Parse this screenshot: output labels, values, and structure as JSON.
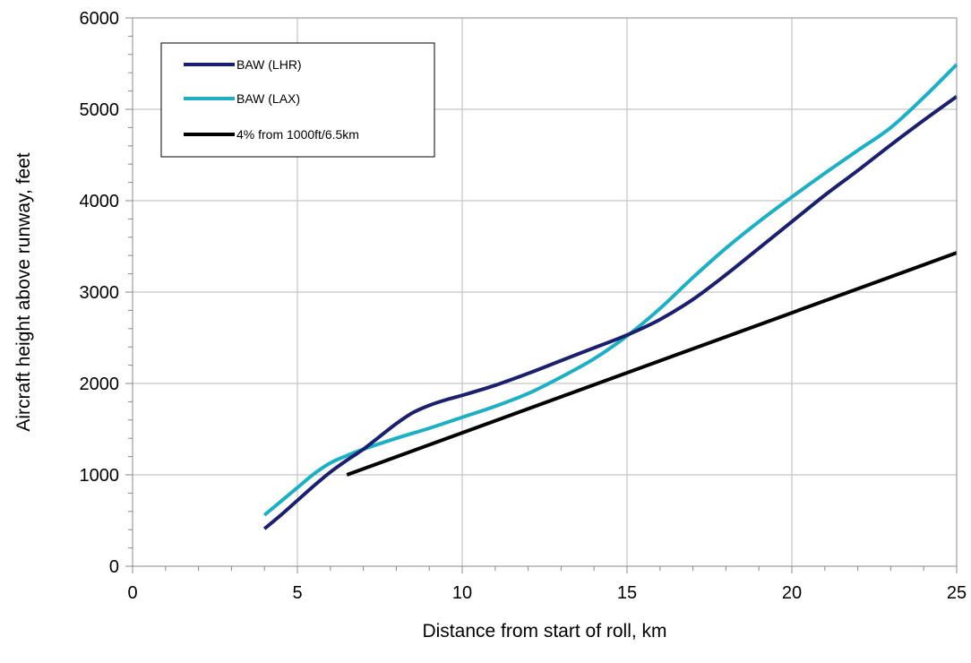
{
  "chart_data": {
    "type": "line",
    "title": "",
    "xlabel": "Distance from start of roll, km",
    "ylabel": "Aircraft height above runway, feet",
    "xlim": [
      0,
      25
    ],
    "ylim": [
      0,
      6000
    ],
    "x_ticks": [
      0,
      5,
      10,
      15,
      20,
      25
    ],
    "y_ticks": [
      0,
      1000,
      2000,
      3000,
      4000,
      5000,
      6000
    ],
    "x_tick_labels": [
      "0",
      "5",
      "10",
      "15",
      "20",
      "25"
    ],
    "y_tick_labels": [
      "0",
      "1000",
      "2000",
      "3000",
      "4000",
      "5000",
      "6000"
    ],
    "grid": true,
    "legend_position": "top-left",
    "series": [
      {
        "name": "BAW (LHR)",
        "color": "#1a1f6e",
        "points": [
          [
            4.0,
            410
          ],
          [
            4.5,
            560
          ],
          [
            5.0,
            720
          ],
          [
            5.5,
            880
          ],
          [
            6.0,
            1030
          ],
          [
            6.5,
            1160
          ],
          [
            7.0,
            1280
          ],
          [
            7.5,
            1420
          ],
          [
            8.0,
            1560
          ],
          [
            8.5,
            1680
          ],
          [
            9.0,
            1760
          ],
          [
            9.5,
            1820
          ],
          [
            10.0,
            1870
          ],
          [
            11.0,
            1980
          ],
          [
            12.0,
            2110
          ],
          [
            13.0,
            2250
          ],
          [
            14.0,
            2390
          ],
          [
            15.0,
            2530
          ],
          [
            16.0,
            2700
          ],
          [
            17.0,
            2920
          ],
          [
            18.0,
            3190
          ],
          [
            19.0,
            3480
          ],
          [
            20.0,
            3770
          ],
          [
            21.0,
            4060
          ],
          [
            22.0,
            4330
          ],
          [
            23.0,
            4610
          ],
          [
            24.0,
            4880
          ],
          [
            25.0,
            5140
          ]
        ]
      },
      {
        "name": "BAW (LAX)",
        "color": "#1eafc5",
        "points": [
          [
            4.0,
            560
          ],
          [
            4.5,
            710
          ],
          [
            5.0,
            860
          ],
          [
            5.5,
            1010
          ],
          [
            6.0,
            1130
          ],
          [
            6.5,
            1210
          ],
          [
            7.0,
            1280
          ],
          [
            8.0,
            1400
          ],
          [
            9.0,
            1510
          ],
          [
            10.0,
            1630
          ],
          [
            11.0,
            1750
          ],
          [
            12.0,
            1890
          ],
          [
            13.0,
            2070
          ],
          [
            14.0,
            2270
          ],
          [
            15.0,
            2520
          ],
          [
            16.0,
            2820
          ],
          [
            17.0,
            3160
          ],
          [
            18.0,
            3480
          ],
          [
            19.0,
            3770
          ],
          [
            20.0,
            4040
          ],
          [
            21.0,
            4300
          ],
          [
            22.0,
            4550
          ],
          [
            23.0,
            4800
          ],
          [
            24.0,
            5130
          ],
          [
            25.0,
            5490
          ]
        ]
      },
      {
        "name": "4% from 1000ft/6.5km",
        "color": "#000000",
        "points": [
          [
            6.5,
            1000
          ],
          [
            25.0,
            3430
          ]
        ]
      }
    ]
  }
}
